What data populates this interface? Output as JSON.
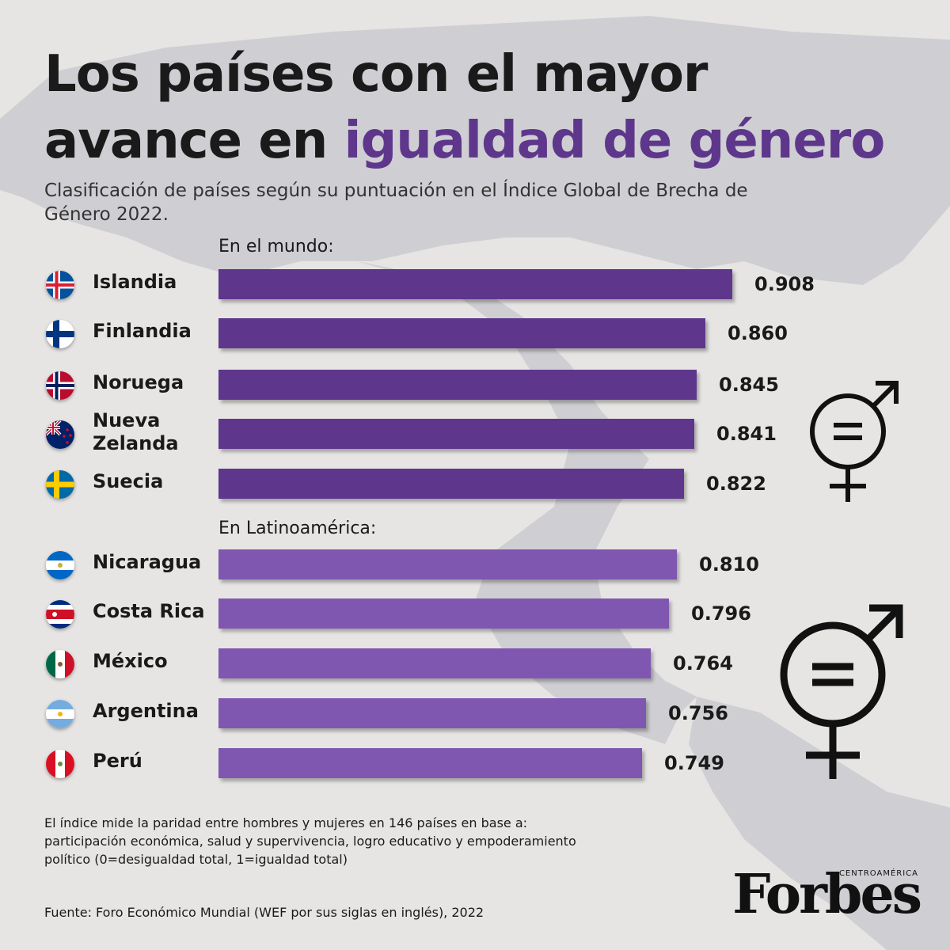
{
  "title": {
    "line1": "Los países con el mayor",
    "line2_plain": "avance en ",
    "line2_accent": "igualdad de género"
  },
  "subtitle": "Clasificación de países según su puntuación en el Índice Global de Brecha de Género 2022.",
  "sections": {
    "world_label": "En el mundo:",
    "latam_label": "En Latinoamérica:"
  },
  "colors": {
    "accent": "#5e378c",
    "world_bar": "#5e378c",
    "latam_bar": "#7f57b0",
    "background": "#e6e5e3"
  },
  "chart_data": {
    "type": "bar",
    "orientation": "horizontal",
    "groups": [
      {
        "name": "En el mundo:",
        "categories": [
          "Islandia",
          "Finlandia",
          "Noruega",
          "Nueva Zelanda",
          "Suecia"
        ],
        "values": [
          0.908,
          0.86,
          0.845,
          0.841,
          0.822
        ],
        "labels": [
          "0.908",
          "0.860",
          "0.845",
          "0.841",
          "0.822"
        ],
        "flags": [
          "iceland-flag-icon",
          "finland-flag-icon",
          "norway-flag-icon",
          "new-zealand-flag-icon",
          "sweden-flag-icon"
        ]
      },
      {
        "name": "En Latinoamérica:",
        "categories": [
          "Nicaragua",
          "Costa Rica",
          "México",
          "Argentina",
          "Perú"
        ],
        "values": [
          0.81,
          0.796,
          0.764,
          0.756,
          0.749
        ],
        "labels": [
          "0.810",
          "0.796",
          "0.764",
          "0.756",
          "0.749"
        ],
        "flags": [
          "nicaragua-flag-icon",
          "costa-rica-flag-icon",
          "mexico-flag-icon",
          "argentina-flag-icon",
          "peru-flag-icon"
        ]
      }
    ],
    "xlim": [
      0,
      1
    ]
  },
  "icons": [
    "gender-equality-symbol-icon"
  ],
  "note": "El índice mide la paridad entre hombres y mujeres en 146 países en base a: participación económica, salud y supervivencia, logro educativo y empoderamiento político (0=desigualdad total, 1=igualdad total)",
  "source": "Fuente: Foro Económico Mundial (WEF por sus siglas en inglés), 2022",
  "brand": {
    "name": "Forbes",
    "region": "CENTROAMÉRICA"
  }
}
